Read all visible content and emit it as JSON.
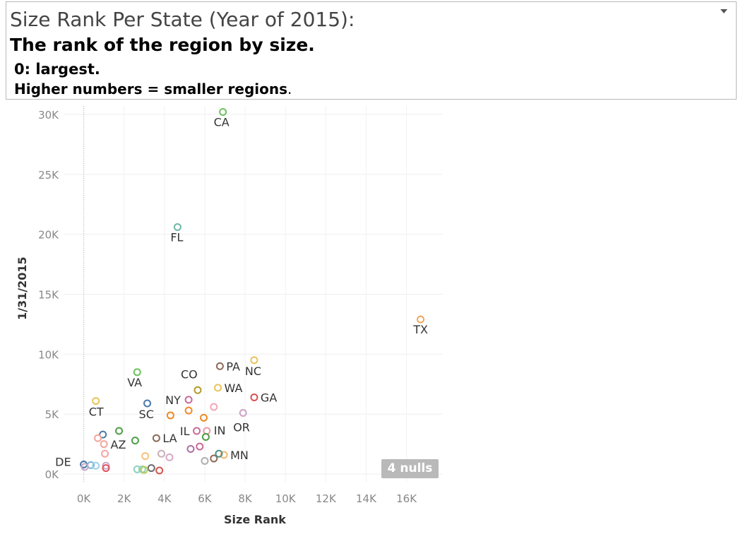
{
  "title_box": {
    "line1": "Size Rank Per State (Year of 2015):",
    "line2": "The rank of the region by size.",
    "line3": "0: largest.",
    "line4_main": "Higher numbers =  smaller regions",
    "line4_end": "."
  },
  "badge": {
    "nulls_label": "4 nulls"
  },
  "chart_data": {
    "type": "scatter",
    "xlabel": "Size Rank",
    "ylabel": "1/31/2015",
    "xlim": [
      -1000,
      17800
    ],
    "ylim": [
      -700,
      30700
    ],
    "x_ticks": [
      {
        "value": 0,
        "label": "0K"
      },
      {
        "value": 2000,
        "label": "2K"
      },
      {
        "value": 4000,
        "label": "4K"
      },
      {
        "value": 6000,
        "label": "6K"
      },
      {
        "value": 8000,
        "label": "8K"
      },
      {
        "value": 10000,
        "label": "10K"
      },
      {
        "value": 12000,
        "label": "12K"
      },
      {
        "value": 14000,
        "label": "14K"
      },
      {
        "value": 16000,
        "label": "16K"
      }
    ],
    "y_ticks": [
      {
        "value": 0,
        "label": "0K"
      },
      {
        "value": 5000,
        "label": "5K"
      },
      {
        "value": 10000,
        "label": "10K"
      },
      {
        "value": 15000,
        "label": "15K"
      },
      {
        "value": 20000,
        "label": "20K"
      },
      {
        "value": 25000,
        "label": "25K"
      },
      {
        "value": 30000,
        "label": "30K"
      }
    ],
    "grid": true,
    "points": [
      {
        "label": "CA",
        "x": 6900,
        "y": 30200,
        "color": "#6cc25e"
      },
      {
        "label": "FL",
        "x": 4650,
        "y": 20600,
        "color": "#6fb8a6"
      },
      {
        "label": "TX",
        "x": 16700,
        "y": 12900,
        "color": "#f5a55a"
      },
      {
        "label": "PA",
        "x": 6750,
        "y": 9000,
        "color": "#8e6b5a"
      },
      {
        "label": "NC",
        "x": 8450,
        "y": 9500,
        "color": "#e9c35a"
      },
      {
        "label": "VA",
        "x": 2650,
        "y": 8500,
        "color": "#6cc25e"
      },
      {
        "label": "CO",
        "x": 5650,
        "y": 7000,
        "color": "#b59b2e"
      },
      {
        "label": "WA",
        "x": 6650,
        "y": 7200,
        "color": "#e9c35a"
      },
      {
        "label": "GA",
        "x": 8450,
        "y": 6400,
        "color": "#d9534f"
      },
      {
        "label": "NY",
        "x": 5200,
        "y": 6200,
        "color": "#c86b98"
      },
      {
        "label": "CT",
        "x": 600,
        "y": 6100,
        "color": "#e9c35a"
      },
      {
        "label": "SC",
        "x": 3150,
        "y": 5900,
        "color": "#4a7aa8"
      },
      {
        "label": "OR",
        "x": 7900,
        "y": 5100,
        "color": "#cda2c6"
      },
      {
        "label": "IN",
        "x": 6100,
        "y": 3600,
        "color": "#e89aa8"
      },
      {
        "label": "IL",
        "x": 5600,
        "y": 3600,
        "color": "#c86b98"
      },
      {
        "label": "LA",
        "x": 3600,
        "y": 3000,
        "color": "#8e6b5a"
      },
      {
        "label": "AZ",
        "x": 1750,
        "y": 3600,
        "color": "#4d9e45"
      },
      {
        "label": "MN",
        "x": 6950,
        "y": 1600,
        "color": "#f5b96a"
      },
      {
        "label": "DE",
        "x": 0,
        "y": 800,
        "color": "#4a7aa8"
      },
      {
        "label": "",
        "x": 4300,
        "y": 4900,
        "color": "#f08a24"
      },
      {
        "label": "",
        "x": 5200,
        "y": 5300,
        "color": "#f08a24"
      },
      {
        "label": "",
        "x": 5950,
        "y": 4700,
        "color": "#f08a24"
      },
      {
        "label": "",
        "x": 6450,
        "y": 5600,
        "color": "#f4a6b8"
      },
      {
        "label": "",
        "x": 950,
        "y": 3300,
        "color": "#4a7aa8"
      },
      {
        "label": "",
        "x": 700,
        "y": 3000,
        "color": "#f4a6a0"
      },
      {
        "label": "",
        "x": 1000,
        "y": 2500,
        "color": "#f4a6a0"
      },
      {
        "label": "",
        "x": 2550,
        "y": 2800,
        "color": "#4d9e45"
      },
      {
        "label": "",
        "x": 1050,
        "y": 1700,
        "color": "#f4a6a0"
      },
      {
        "label": "",
        "x": 1100,
        "y": 700,
        "color": "#c8a8c8"
      },
      {
        "label": "",
        "x": 1100,
        "y": 500,
        "color": "#e0525f"
      },
      {
        "label": "",
        "x": 350,
        "y": 750,
        "color": "#78b0d8"
      },
      {
        "label": "",
        "x": 600,
        "y": 700,
        "color": "#9fd0e8"
      },
      {
        "label": "",
        "x": 50,
        "y": 600,
        "color": "#c8a8c8"
      },
      {
        "label": "",
        "x": 5300,
        "y": 2100,
        "color": "#b06fa0"
      },
      {
        "label": "",
        "x": 5750,
        "y": 2300,
        "color": "#c86b98"
      },
      {
        "label": "",
        "x": 6050,
        "y": 3100,
        "color": "#4d9e45"
      },
      {
        "label": "",
        "x": 6450,
        "y": 1300,
        "color": "#8e6b5a"
      },
      {
        "label": "",
        "x": 6700,
        "y": 1700,
        "color": "#4f8f8c"
      },
      {
        "label": "",
        "x": 6000,
        "y": 1100,
        "color": "#b0b0b0"
      },
      {
        "label": "",
        "x": 3850,
        "y": 1700,
        "color": "#c8b0b8"
      },
      {
        "label": "",
        "x": 4250,
        "y": 1400,
        "color": "#d8a8c8"
      },
      {
        "label": "",
        "x": 3050,
        "y": 1500,
        "color": "#f5c27a"
      },
      {
        "label": "",
        "x": 3350,
        "y": 500,
        "color": "#6b6b6b"
      },
      {
        "label": "",
        "x": 2650,
        "y": 400,
        "color": "#8fd0c0"
      },
      {
        "label": "",
        "x": 2900,
        "y": 400,
        "color": "#8fd0c0"
      },
      {
        "label": "",
        "x": 3000,
        "y": 350,
        "color": "#b6cf5a"
      },
      {
        "label": "",
        "x": 3750,
        "y": 300,
        "color": "#d9534f"
      }
    ]
  }
}
